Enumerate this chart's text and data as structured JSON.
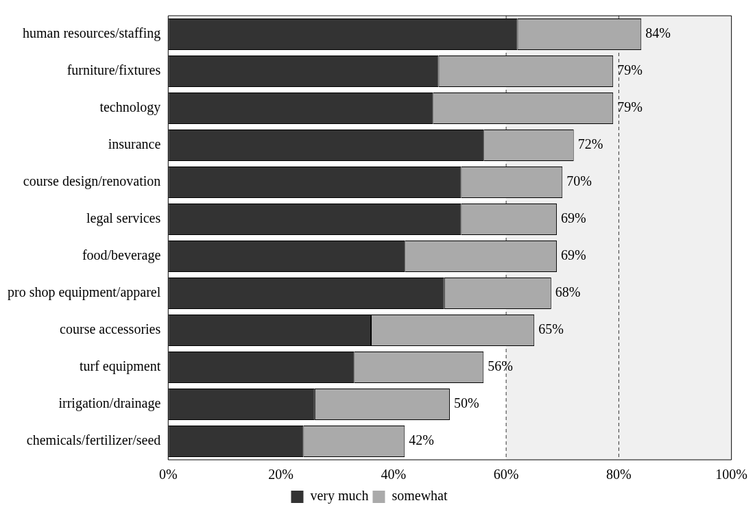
{
  "chart_data": {
    "type": "bar",
    "orientation": "horizontal",
    "stacked": true,
    "categories": [
      "human resources/staffing",
      "furniture/fixtures",
      "technology",
      "insurance",
      "course design/renovation",
      "legal services",
      "food/beverage",
      "pro shop equipment/apparel",
      "course accessories",
      "turf equipment",
      "irrigation/drainage",
      "chemicals/fertilizer/seed"
    ],
    "series": [
      {
        "name": "very much",
        "color": "#333333",
        "values": [
          62,
          48,
          47,
          56,
          52,
          52,
          42,
          49,
          36,
          33,
          26,
          24
        ]
      },
      {
        "name": "somewhat",
        "color": "#aaaaaa",
        "values": [
          22,
          31,
          32,
          16,
          18,
          17,
          27,
          19,
          29,
          23,
          24,
          18
        ]
      }
    ],
    "totals": [
      "84%",
      "79%",
      "79%",
      "72%",
      "70%",
      "69%",
      "69%",
      "68%",
      "65%",
      "56%",
      "50%",
      "42%"
    ],
    "xlim": [
      0,
      100
    ],
    "xticks": [
      {
        "value": 0,
        "label": "0%"
      },
      {
        "value": 20,
        "label": "20%"
      },
      {
        "value": 40,
        "label": "40%"
      },
      {
        "value": 60,
        "label": "60%"
      },
      {
        "value": 80,
        "label": "80%"
      },
      {
        "value": 100,
        "label": "100%"
      }
    ],
    "bands": [
      {
        "axis": "x",
        "from": 60,
        "to": 100,
        "color": "#f0f0f0"
      }
    ],
    "ref_lines": [
      {
        "axis": "x",
        "value": 60,
        "line_style": "dashed",
        "color": "#333333"
      },
      {
        "axis": "x",
        "value": 80,
        "line_style": "dashed",
        "color": "#333333"
      }
    ],
    "legend": "bottom"
  }
}
